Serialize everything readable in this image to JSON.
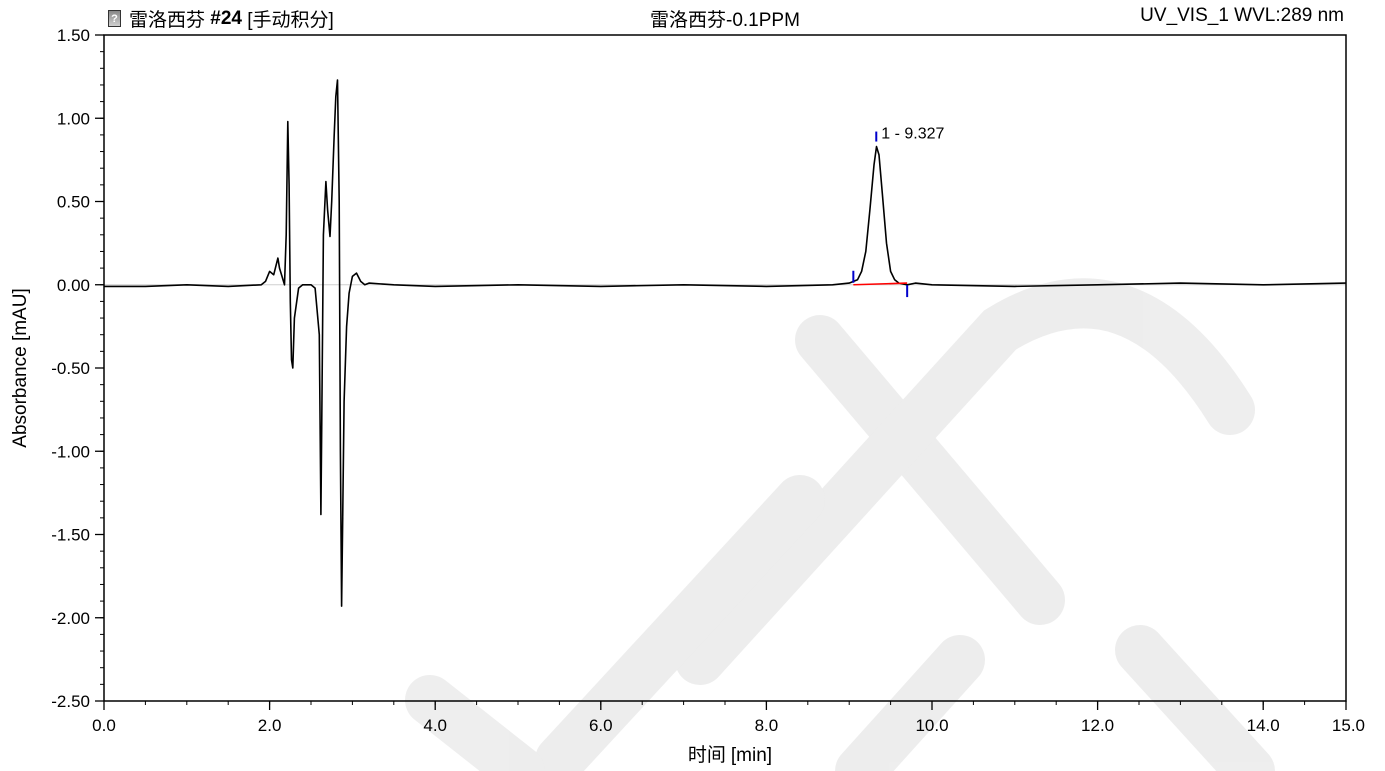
{
  "header": {
    "sample_name": "雷洛西芬",
    "injection": "#24",
    "integration_mode": "[手动积分]",
    "center_title": "雷洛西芬-0.1PPM",
    "detector": "UV_VIS_1 WVL:289 nm",
    "icon": "document-question-icon"
  },
  "chart_data": {
    "type": "line",
    "xlabel_prefix": "时间",
    "xlabel_unit": "[min]",
    "ylabel": "Absorbance [mAU]",
    "xlim": [
      0.0,
      15.0
    ],
    "ylim": [
      -2.5,
      1.5
    ],
    "x_ticks": [
      "0.0",
      "2.0",
      "4.0",
      "6.0",
      "8.0",
      "10.0",
      "12.0",
      "14.0",
      "15.0"
    ],
    "y_ticks": [
      "1.50",
      "1.00",
      "0.50",
      "0.00",
      "-0.50",
      "-1.00",
      "-1.50",
      "-2.00",
      "-2.50"
    ],
    "series": [
      {
        "color": "#000000",
        "x": [
          0.0,
          0.5,
          1.0,
          1.5,
          1.9,
          1.95,
          2.0,
          2.05,
          2.08,
          2.1,
          2.12,
          2.15,
          2.18,
          2.2,
          2.22,
          2.235,
          2.25,
          2.265,
          2.28,
          2.3,
          2.35,
          2.4,
          2.45,
          2.5,
          2.55,
          2.6,
          2.62,
          2.63,
          2.65,
          2.68,
          2.7,
          2.73,
          2.75,
          2.78,
          2.8,
          2.82,
          2.84,
          2.855,
          2.87,
          2.88,
          2.9,
          2.93,
          2.96,
          3.0,
          3.05,
          3.1,
          3.15,
          3.2,
          3.5,
          4.0,
          5.0,
          6.0,
          7.0,
          8.0,
          8.8,
          9.0,
          9.1,
          9.15,
          9.2,
          9.25,
          9.3,
          9.33,
          9.36,
          9.4,
          9.45,
          9.5,
          9.55,
          9.6,
          9.7,
          9.8,
          10.0,
          11.0,
          12.0,
          13.0,
          14.0,
          15.0
        ],
        "y": [
          -0.01,
          -0.01,
          0.0,
          -0.01,
          0.0,
          0.02,
          0.08,
          0.06,
          0.12,
          0.16,
          0.1,
          0.05,
          0.0,
          0.3,
          0.98,
          0.6,
          -0.1,
          -0.45,
          -0.5,
          -0.2,
          -0.02,
          0.0,
          0.0,
          0.0,
          -0.02,
          -0.3,
          -1.38,
          -0.8,
          0.3,
          0.62,
          0.45,
          0.29,
          0.5,
          0.9,
          1.13,
          1.23,
          0.5,
          -1.0,
          -1.93,
          -1.5,
          -0.7,
          -0.25,
          -0.05,
          0.05,
          0.07,
          0.02,
          0.0,
          0.01,
          0.0,
          -0.01,
          0.0,
          -0.01,
          0.0,
          -0.01,
          0.0,
          0.01,
          0.03,
          0.08,
          0.2,
          0.45,
          0.72,
          0.83,
          0.78,
          0.55,
          0.25,
          0.08,
          0.03,
          0.01,
          0.0,
          0.01,
          0.0,
          -0.01,
          0.0,
          0.01,
          0.0,
          0.01
        ]
      }
    ],
    "peak": {
      "label": "1 - 9.327",
      "apex_x": 9.327,
      "apex_y": 0.83,
      "start_x": 9.05,
      "start_y": 0.0,
      "end_x": 9.7,
      "end_y": 0.01,
      "baseline_color": "#ff0000",
      "marker_color": "#0000cc"
    }
  }
}
